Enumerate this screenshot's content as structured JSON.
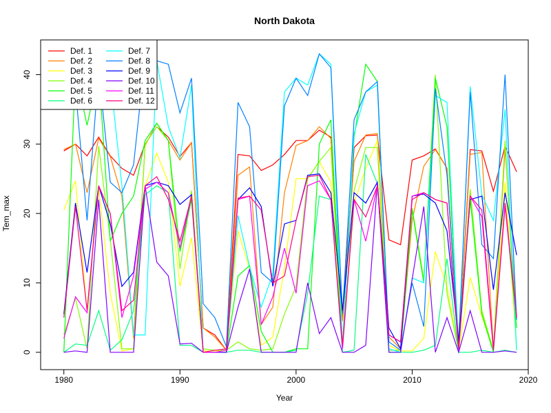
{
  "chart_data": {
    "type": "line",
    "title": "North Dakota",
    "xlabel": "Year",
    "ylabel": "Tem_max",
    "xlim": [
      1978,
      2020
    ],
    "ylim": [
      -2.5,
      45
    ],
    "x_ticks": [
      1980,
      1990,
      2000,
      2010,
      2020
    ],
    "y_ticks": [
      0,
      10,
      20,
      30,
      40
    ],
    "legend_position": "top-left",
    "x": [
      1980,
      1981,
      1982,
      1983,
      1984,
      1985,
      1986,
      1987,
      1988,
      1989,
      1990,
      1991,
      1992,
      1993,
      1994,
      1995,
      1996,
      1997,
      1998,
      1999,
      2000,
      2001,
      2002,
      2003,
      2004,
      2005,
      2006,
      2007,
      2008,
      2009,
      2010,
      2011,
      2012,
      2013,
      2014,
      2015,
      2016,
      2017,
      2018,
      2019
    ],
    "series": [
      {
        "name": "Def. 1",
        "color": "#FF0000",
        "values": [
          29,
          30,
          28.3,
          31,
          28.3,
          26.5,
          25.5,
          30,
          32.5,
          31,
          28.2,
          30.2,
          3.5,
          2.5,
          0.3,
          28.5,
          28.3,
          26.2,
          27,
          28.5,
          30.5,
          30.5,
          32,
          31,
          4.7,
          29.5,
          31.2,
          31.3,
          16.2,
          15.5,
          27.7,
          28.3,
          29.3,
          26.5,
          0.5,
          29.2,
          29,
          23.2,
          29.7,
          26
        ]
      },
      {
        "name": "Def. 2",
        "color": "#FF8000",
        "values": [
          29.2,
          30,
          23,
          30.8,
          28.2,
          22.5,
          2,
          29.8,
          33,
          30.5,
          27.7,
          30.2,
          3.5,
          2.2,
          0.3,
          25.5,
          26.7,
          4,
          6.5,
          23,
          29.8,
          30.5,
          32.5,
          30.8,
          4.5,
          27.5,
          31.3,
          31.5,
          2.2,
          0.5,
          19,
          26.8,
          29.2,
          26.5,
          0.5,
          28.5,
          28.8,
          0.5,
          29.3,
          4.7
        ]
      },
      {
        "name": "Def. 3",
        "color": "#FFFF00",
        "values": [
          20.5,
          24.7,
          6,
          23.7,
          8.5,
          0.2,
          0.5,
          24,
          28.7,
          24.5,
          9.5,
          16.5,
          0.2,
          0.2,
          0.2,
          17.5,
          12,
          1,
          2.2,
          12.2,
          25,
          25,
          27.5,
          24.5,
          0.5,
          21.5,
          26.5,
          30.5,
          1,
          0.2,
          0.2,
          2,
          14.5,
          9.5,
          0.2,
          10.8,
          5.2,
          0.2,
          24.5,
          0.5
        ]
      },
      {
        "name": "Def. 4",
        "color": "#80FF00",
        "values": [
          2.5,
          7.8,
          0.5,
          29.7,
          16.3,
          0.5,
          0.5,
          30,
          32.5,
          30.5,
          12,
          23.3,
          0.5,
          0.3,
          0.3,
          1.5,
          0.5,
          0.3,
          0.5,
          5.5,
          9.5,
          25,
          27.5,
          29.5,
          0.5,
          23.3,
          29.5,
          29.5,
          0.3,
          0.3,
          20.8,
          10.5,
          40,
          8.5,
          0.2,
          23.5,
          6,
          0.3,
          30.5,
          0.3
        ]
      },
      {
        "name": "Def. 5",
        "color": "#00FF00",
        "values": [
          0,
          40.5,
          32.7,
          40.5,
          16,
          20,
          22.5,
          30.5,
          33,
          30.5,
          14.5,
          22,
          0,
          0,
          0,
          11,
          12.5,
          3,
          0,
          0,
          0.5,
          0.5,
          30,
          33.5,
          1,
          31,
          41.5,
          39,
          0,
          0,
          20.5,
          10,
          39.5,
          32.5,
          0,
          22,
          5.5,
          0,
          21.5,
          3.5
        ]
      },
      {
        "name": "Def. 6",
        "color": "#00FF80",
        "values": [
          0,
          1.2,
          1,
          6,
          0.3,
          1.8,
          6,
          22.7,
          24,
          23,
          1,
          1,
          0,
          0,
          0,
          0.3,
          0.3,
          0,
          0,
          0,
          0.3,
          8.5,
          22.5,
          22,
          0,
          0.3,
          28.5,
          24.3,
          0,
          0,
          0,
          0.3,
          1,
          13.5,
          0,
          0,
          0.3,
          0,
          0.3,
          0
        ]
      },
      {
        "name": "Def. 7",
        "color": "#00FFFF",
        "values": [
          37.8,
          38.5,
          36.5,
          40,
          39.5,
          24,
          2.5,
          2.5,
          42,
          32.5,
          28,
          38.5,
          0,
          0,
          0,
          19.7,
          12.3,
          6.5,
          11.3,
          37.5,
          39.5,
          38.5,
          43,
          41.5,
          0.5,
          31.5,
          37.5,
          38.5,
          0.5,
          0,
          10.7,
          10,
          37,
          36,
          0,
          38.3,
          22.7,
          19,
          35,
          0.3
        ]
      },
      {
        "name": "Def. 8",
        "color": "#0080FF",
        "values": [
          36,
          38,
          19,
          40.5,
          24.5,
          23,
          27,
          42.5,
          42,
          41.5,
          34.5,
          39.5,
          7,
          5,
          0.8,
          36,
          32.5,
          11.5,
          10,
          35.5,
          39.5,
          37,
          43,
          41,
          5.5,
          33.5,
          37.5,
          39,
          1.5,
          0.3,
          10,
          3.7,
          38,
          25.5,
          1.5,
          37.5,
          15.5,
          13.5,
          40,
          4.7
        ]
      },
      {
        "name": "Def. 9",
        "color": "#0000FF",
        "values": [
          5.5,
          21.5,
          11.5,
          24,
          18.5,
          9.5,
          11.5,
          24,
          24.5,
          24,
          21.3,
          22.7,
          0,
          0,
          0,
          22,
          23.7,
          21,
          9.5,
          18.5,
          19,
          25.5,
          25.7,
          23,
          6,
          23,
          21.5,
          24.5,
          3.5,
          0.5,
          22.5,
          22.8,
          21.5,
          17.5,
          1.5,
          22,
          22.5,
          9,
          23,
          14
        ]
      },
      {
        "name": "Def. 10",
        "color": "#8000FF",
        "values": [
          0,
          0.2,
          0,
          22,
          0,
          0,
          0,
          24,
          13,
          11,
          1.2,
          1.3,
          0,
          0,
          0,
          6.5,
          12,
          0,
          0,
          0,
          0,
          10,
          2.7,
          5,
          0,
          0,
          1,
          24.5,
          0,
          0,
          10.5,
          21,
          0,
          5,
          0,
          6,
          0,
          0,
          0.2,
          0
        ]
      },
      {
        "name": "Def. 11",
        "color": "#FF00FF",
        "values": [
          2,
          8,
          5.7,
          24,
          20,
          5,
          11,
          23.5,
          24.5,
          23,
          15,
          22.5,
          0,
          0,
          0.3,
          22,
          22.5,
          4,
          8,
          15,
          8.5,
          24,
          24.7,
          22,
          0.5,
          22,
          16,
          24,
          2.5,
          1.5,
          22.5,
          23,
          22,
          21.5,
          0.3,
          22.5,
          19.5,
          0.3,
          21,
          5
        ]
      },
      {
        "name": "Def. 12",
        "color": "#FF0080",
        "values": [
          5,
          21,
          6,
          24,
          20,
          6,
          7.5,
          24,
          25.3,
          22,
          16,
          22.5,
          0,
          0.3,
          0.5,
          22.2,
          22.5,
          20.5,
          10,
          11,
          19,
          25.3,
          25.5,
          22,
          1,
          22,
          19.5,
          24,
          2.5,
          1.5,
          22,
          23,
          22,
          21.5,
          0.5,
          22.5,
          20.5,
          0.5,
          21.5,
          5
        ]
      }
    ]
  }
}
